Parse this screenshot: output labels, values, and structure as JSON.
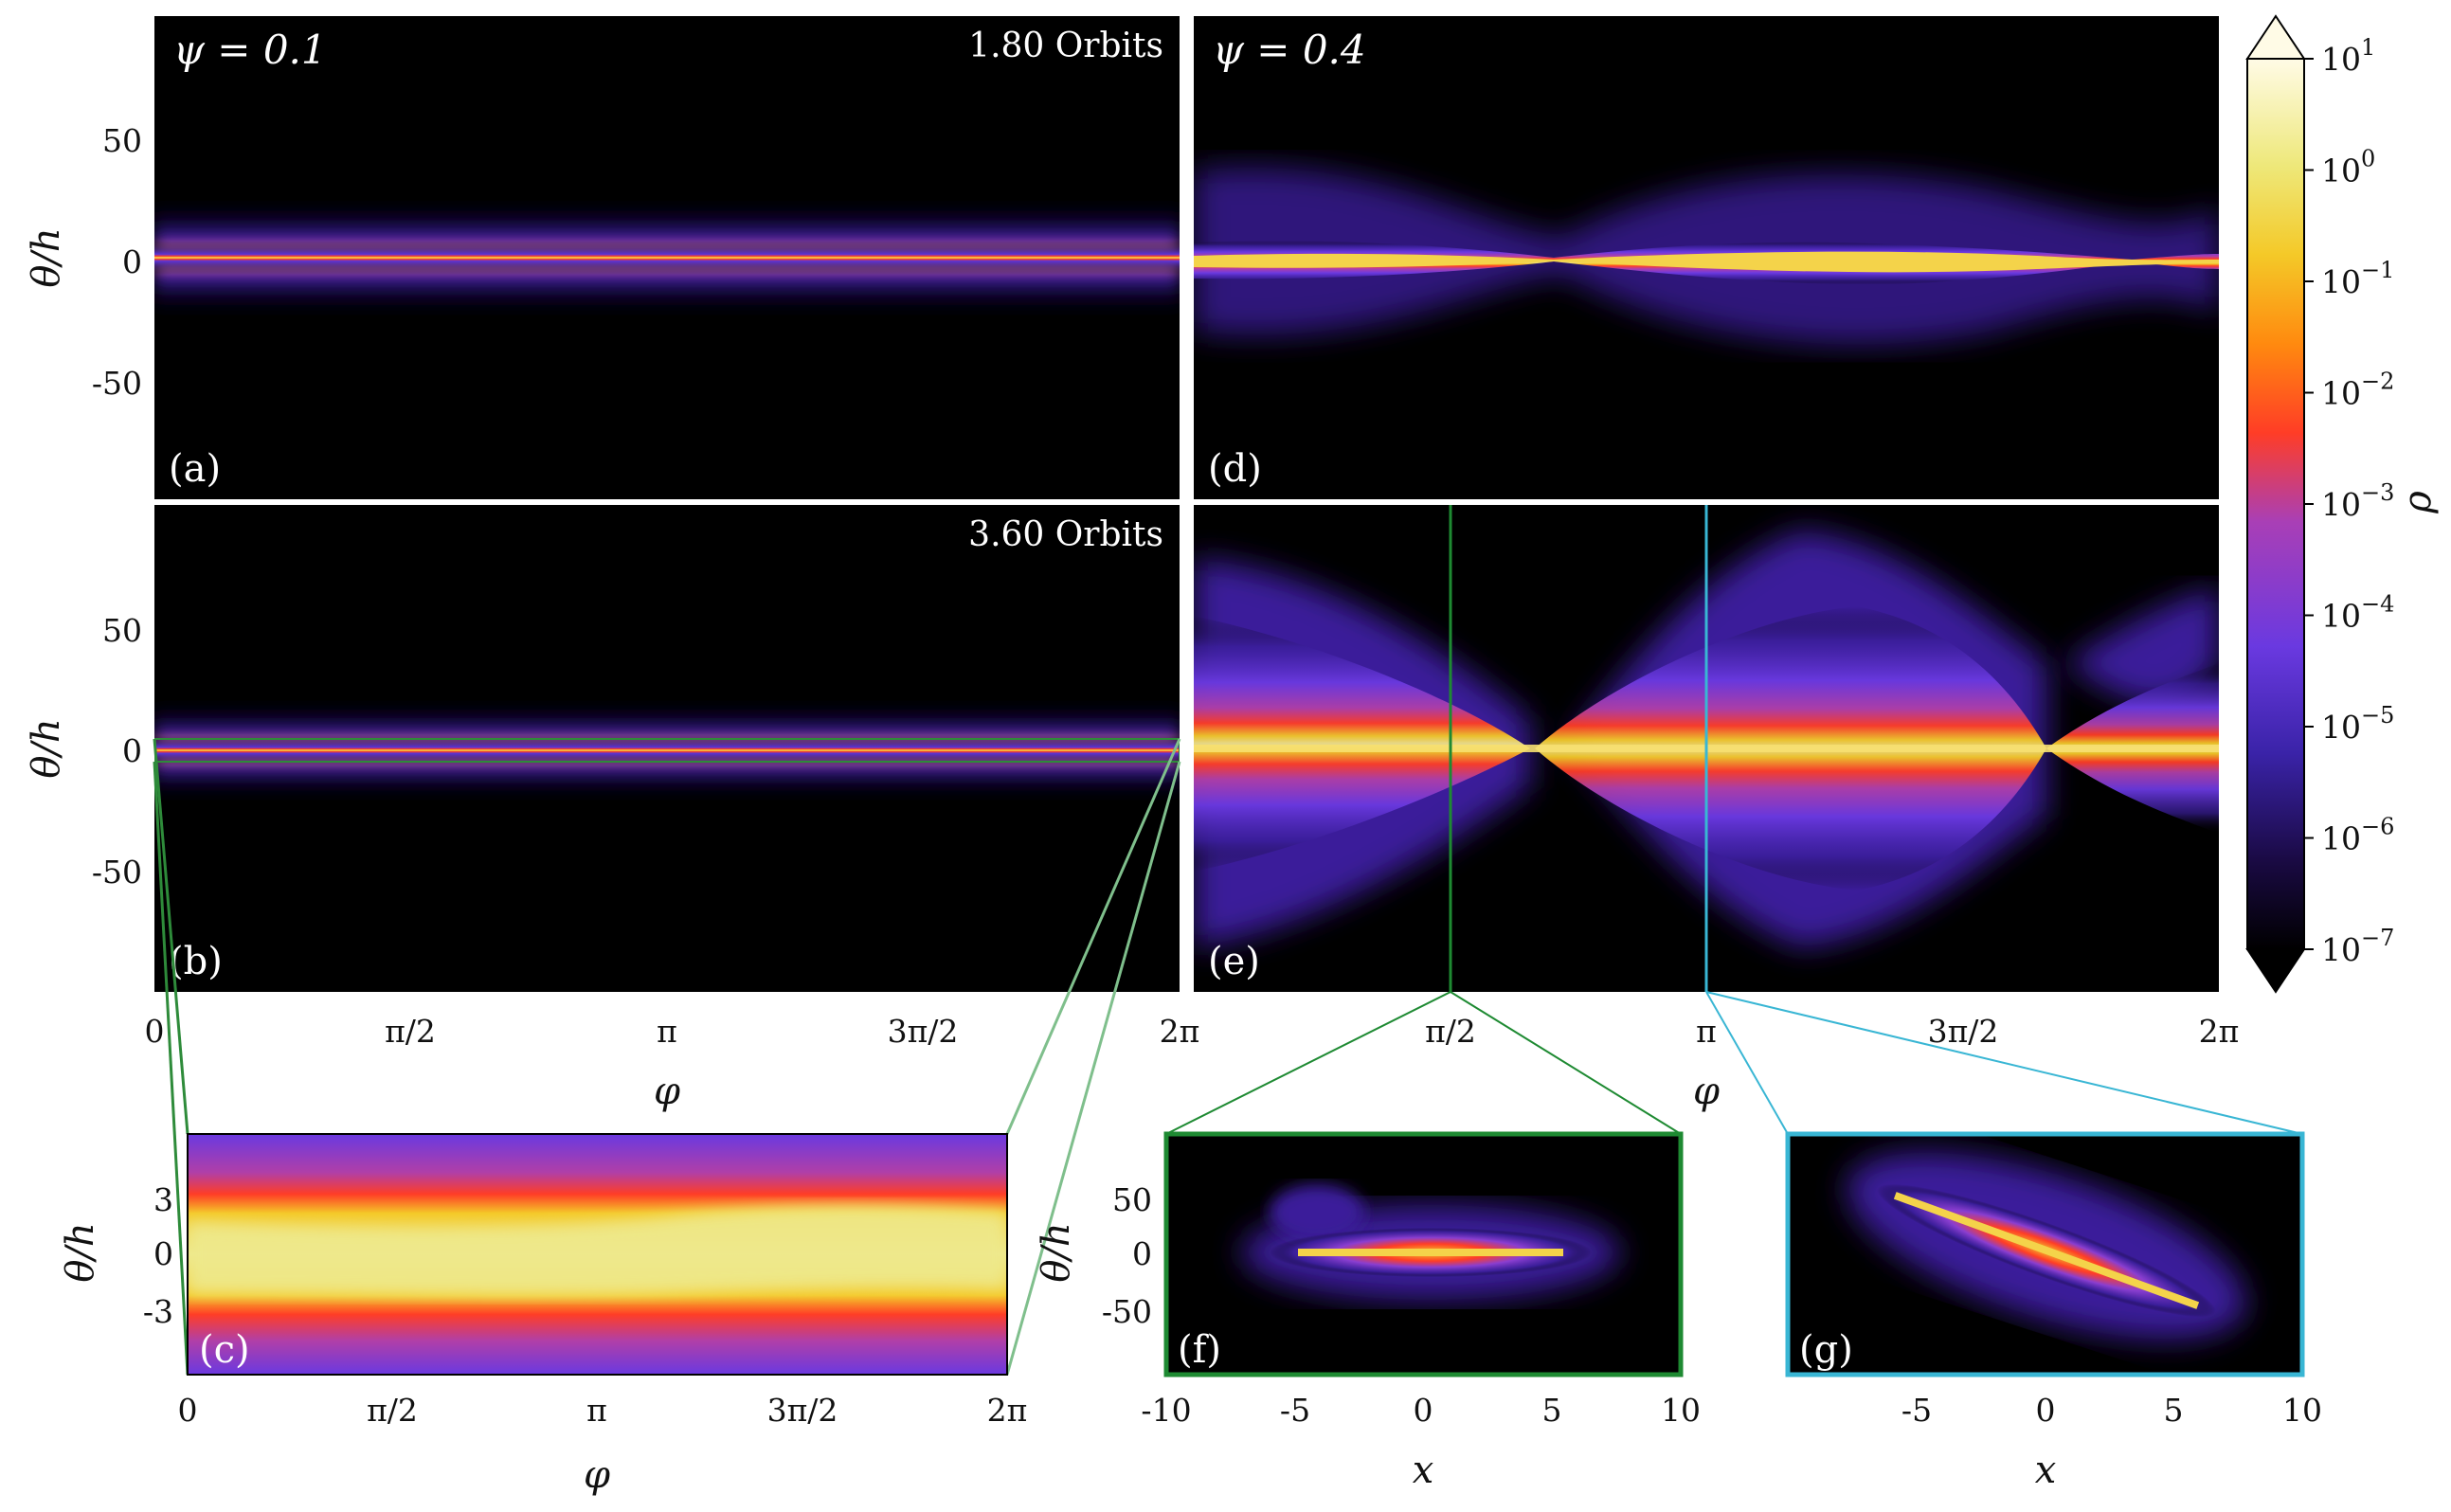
{
  "figure": {
    "type": "multi-panel density maps",
    "colormap": [
      "#000000",
      "#1a0a44",
      "#3a23a8",
      "#6a39e0",
      "#a93fb6",
      "#ff3d26",
      "#ff8a0f",
      "#f4c928",
      "#eee87a",
      "#fffbe6"
    ],
    "colorbar": {
      "label": "ρ",
      "scale": "log",
      "range": [
        1e-07,
        10
      ],
      "ticks": [
        {
          "base": "10",
          "exp": "1"
        },
        {
          "base": "10",
          "exp": "0"
        },
        {
          "base": "10",
          "exp": "−1"
        },
        {
          "base": "10",
          "exp": "−2"
        },
        {
          "base": "10",
          "exp": "−3"
        },
        {
          "base": "10",
          "exp": "−4"
        },
        {
          "base": "10",
          "exp": "−5"
        },
        {
          "base": "10",
          "exp": "−6"
        },
        {
          "base": "10",
          "exp": "−7"
        }
      ],
      "extend": "both"
    },
    "col_headers": {
      "left": "ψ = 0.1",
      "right": "ψ = 0.4"
    },
    "row_times": [
      "1.80 Orbits",
      "3.60 Orbits"
    ],
    "phi_ticks": [
      "0",
      "π/2",
      "π",
      "3π/2",
      "2π"
    ],
    "theta_ticks_main": [
      "50",
      "0",
      "-50"
    ],
    "theta_ticks_zoom": [
      "3",
      "0",
      "-3"
    ],
    "x_ticks_f": [
      "-10",
      "-5",
      "0",
      "5",
      "10"
    ],
    "x_ticks_g": [
      "-5",
      "0",
      "5",
      "10"
    ],
    "labels": {
      "phi": "φ",
      "theta": "θ/h",
      "x": "x"
    },
    "zoom_colors": {
      "c": "#2e8b3a",
      "f": "#1e8a32",
      "g": "#39b6d4"
    }
  },
  "chart_data": [
    {
      "panel": "(a)",
      "type": "heatmap",
      "psi": 0.1,
      "time_orbits": 1.8,
      "xlabel": "",
      "ylabel": "θ/h",
      "xlim": [
        0,
        6.2832
      ],
      "ylim": [
        -100,
        100
      ],
      "disk_halfwidth_theta_h": 3,
      "envelope_theta_h": 20
    },
    {
      "panel": "(b)",
      "type": "heatmap",
      "psi": 0.1,
      "time_orbits": 3.6,
      "xlabel": "φ",
      "ylabel": "θ/h",
      "xlim": [
        0,
        6.2832
      ],
      "ylim": [
        -100,
        100
      ],
      "disk_halfwidth_theta_h": 3,
      "envelope_theta_h": 15
    },
    {
      "panel": "(c)",
      "type": "heatmap",
      "zoom_of": "(b)",
      "xlabel": "φ",
      "ylabel": "θ/h",
      "xlim": [
        0,
        6.2832
      ],
      "ylim": [
        -6,
        6
      ]
    },
    {
      "panel": "(d)",
      "type": "heatmap",
      "psi": 0.4,
      "time_orbits": 1.8,
      "xlabel": "",
      "ylabel": "",
      "xlim": [
        0,
        6.2832
      ],
      "ylim": [
        -100,
        100
      ],
      "disk_halfwidth_theta_h": 7,
      "envelope_theta_h": 35
    },
    {
      "panel": "(e)",
      "type": "heatmap",
      "psi": 0.4,
      "time_orbits": 3.6,
      "xlabel": "φ",
      "ylabel": "",
      "xlim": [
        0,
        6.2832
      ],
      "ylim": [
        -100,
        100
      ],
      "nodes_phi": [
        2.2,
        5.3
      ],
      "slice_lines_phi": [
        1.5708,
        3.1416
      ]
    },
    {
      "panel": "(f)",
      "type": "heatmap",
      "slice_of": "(e)",
      "slice_phi": 1.5708,
      "xlabel": "x",
      "ylabel": "θ/h",
      "xlim": [
        -10,
        10
      ],
      "ylim": [
        -100,
        100
      ]
    },
    {
      "panel": "(g)",
      "type": "heatmap",
      "slice_of": "(e)",
      "slice_phi": 3.1416,
      "xlabel": "x",
      "ylabel": "",
      "xlim": [
        -10,
        10
      ],
      "ylim": [
        -100,
        100
      ]
    }
  ]
}
